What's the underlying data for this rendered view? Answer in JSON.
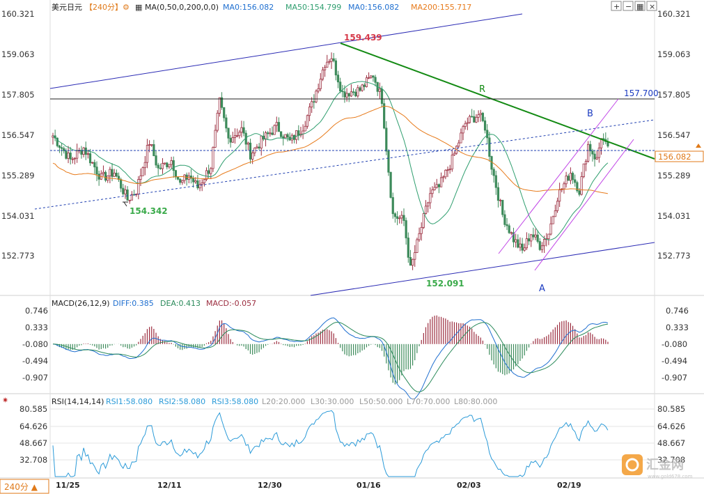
{
  "colors": {
    "up": "#9b2c3e",
    "down": "#3c8a5a",
    "ma50": "#2e9e6e",
    "ma200": "#e77a1a",
    "trend": "#138a13",
    "channel": "#2a2ab4",
    "pink": "#c044e6",
    "black": "#222222",
    "dashed_line": "#1f3fb0",
    "macd_diff": "#1f6fd0",
    "macd_dea": "#2a8a5a",
    "rsi": "#2a9ad8",
    "price_tag": "#e07a1a",
    "annot_red": "#d63a4a",
    "annot_green": "#3aaa4a",
    "annot_blue": "#1a3ac0"
  },
  "header": {
    "symbol": "美元日元",
    "period_tag": "【240分】",
    "gear_icon": "⚙",
    "indicator_icon": "▦",
    "ma_spec": "MA(0,50,0,200,0,0)",
    "ma0_a": "MA0:156.082",
    "ma50": "MA50:154.799",
    "ma0_b": "MA0:156.082",
    "ma200": "MA200:155.717"
  },
  "toolbar": {
    "zoom_in": "+",
    "zoom_out": "−",
    "layout": "▦",
    "close": "×"
  },
  "main": {
    "y_ticks": [
      "160.321",
      "159.063",
      "157.805",
      "156.547",
      "155.289",
      "154.031",
      "152.773"
    ],
    "current_price": "156.082",
    "annotations": {
      "high": "159.439",
      "low1": "154.342",
      "low2": "152.091",
      "r": "R",
      "b": "B",
      "a": "A",
      "resistance": "157.700"
    }
  },
  "macd": {
    "title": "MACD(26,12,9)",
    "diff": "DIFF:0.385",
    "dea": "DEA:0.413",
    "macd": "MACD:-0.057",
    "y_ticks": [
      "0.746",
      "0.333",
      "-0.080",
      "-0.494",
      "-0.907"
    ]
  },
  "rsi": {
    "title": "RSI(14,14,14)",
    "rsi1": "RSI1:58.080",
    "rsi2": "RSI2:58.080",
    "rsi3": "RSI3:58.080",
    "l20": "L20:20.000",
    "l30": "L30:30.000",
    "l50": "L50:50.000",
    "l70": "L70:70.000",
    "l80": "L80:80.000",
    "y_ticks": [
      "80.585",
      "64.626",
      "48.667",
      "32.708"
    ]
  },
  "x_labels": [
    "11/25",
    "12/11",
    "12/30",
    "01/16",
    "02/03",
    "02/19"
  ],
  "footer": {
    "period": "240分 ▲"
  },
  "watermark": {
    "name": "汇金网",
    "url": "www.gold678.com"
  },
  "chart_data": {
    "type": "candlestick",
    "title": "美元日元 240分",
    "price_range": [
      151.9,
      160.6
    ],
    "waypoints": [
      {
        "i": 0,
        "p": 156.6
      },
      {
        "i": 8,
        "p": 155.8
      },
      {
        "i": 14,
        "p": 156.2
      },
      {
        "i": 22,
        "p": 155.2
      },
      {
        "i": 28,
        "p": 155.4
      },
      {
        "i": 34,
        "p": 154.5
      },
      {
        "i": 38,
        "p": 154.8
      },
      {
        "i": 44,
        "p": 156.4
      },
      {
        "i": 48,
        "p": 155.5
      },
      {
        "i": 54,
        "p": 155.8
      },
      {
        "i": 58,
        "p": 155.0
      },
      {
        "i": 62,
        "p": 155.3
      },
      {
        "i": 66,
        "p": 154.9
      },
      {
        "i": 72,
        "p": 155.6
      },
      {
        "i": 76,
        "p": 157.7
      },
      {
        "i": 80,
        "p": 156.5
      },
      {
        "i": 86,
        "p": 156.8
      },
      {
        "i": 90,
        "p": 156.0
      },
      {
        "i": 96,
        "p": 156.5
      },
      {
        "i": 102,
        "p": 156.9
      },
      {
        "i": 108,
        "p": 156.4
      },
      {
        "i": 114,
        "p": 156.9
      },
      {
        "i": 118,
        "p": 157.6
      },
      {
        "i": 124,
        "p": 159.0
      },
      {
        "i": 127,
        "p": 159.2
      },
      {
        "i": 132,
        "p": 158.0
      },
      {
        "i": 140,
        "p": 158.1
      },
      {
        "i": 146,
        "p": 158.6
      },
      {
        "i": 150,
        "p": 157.8
      },
      {
        "i": 152,
        "p": 156.2
      },
      {
        "i": 155,
        "p": 154.0
      },
      {
        "i": 160,
        "p": 153.8
      },
      {
        "i": 163,
        "p": 152.2
      },
      {
        "i": 168,
        "p": 153.6
      },
      {
        "i": 172,
        "p": 154.7
      },
      {
        "i": 176,
        "p": 154.9
      },
      {
        "i": 182,
        "p": 155.8
      },
      {
        "i": 188,
        "p": 157.0
      },
      {
        "i": 194,
        "p": 157.3
      },
      {
        "i": 197,
        "p": 156.9
      },
      {
        "i": 200,
        "p": 155.6
      },
      {
        "i": 205,
        "p": 154.0
      },
      {
        "i": 210,
        "p": 153.2
      },
      {
        "i": 214,
        "p": 152.8
      },
      {
        "i": 218,
        "p": 153.4
      },
      {
        "i": 222,
        "p": 153.0
      },
      {
        "i": 226,
        "p": 153.4
      },
      {
        "i": 230,
        "p": 154.6
      },
      {
        "i": 236,
        "p": 155.4
      },
      {
        "i": 240,
        "p": 154.8
      },
      {
        "i": 244,
        "p": 156.3
      },
      {
        "i": 248,
        "p": 155.8
      },
      {
        "i": 250,
        "p": 156.6
      },
      {
        "i": 253,
        "p": 156.1
      }
    ],
    "ma_levels": {
      "ma50": 154.799,
      "ma200": 155.717,
      "ma0": 156.082
    },
    "horizontal_levels": [
      157.7,
      156.082
    ],
    "macd": {
      "diff": 0.385,
      "dea": 0.413,
      "macd": -0.057,
      "range": [
        -1.15,
        0.9
      ]
    },
    "rsi": {
      "value": 58.08,
      "range": [
        20,
        88
      ]
    }
  }
}
